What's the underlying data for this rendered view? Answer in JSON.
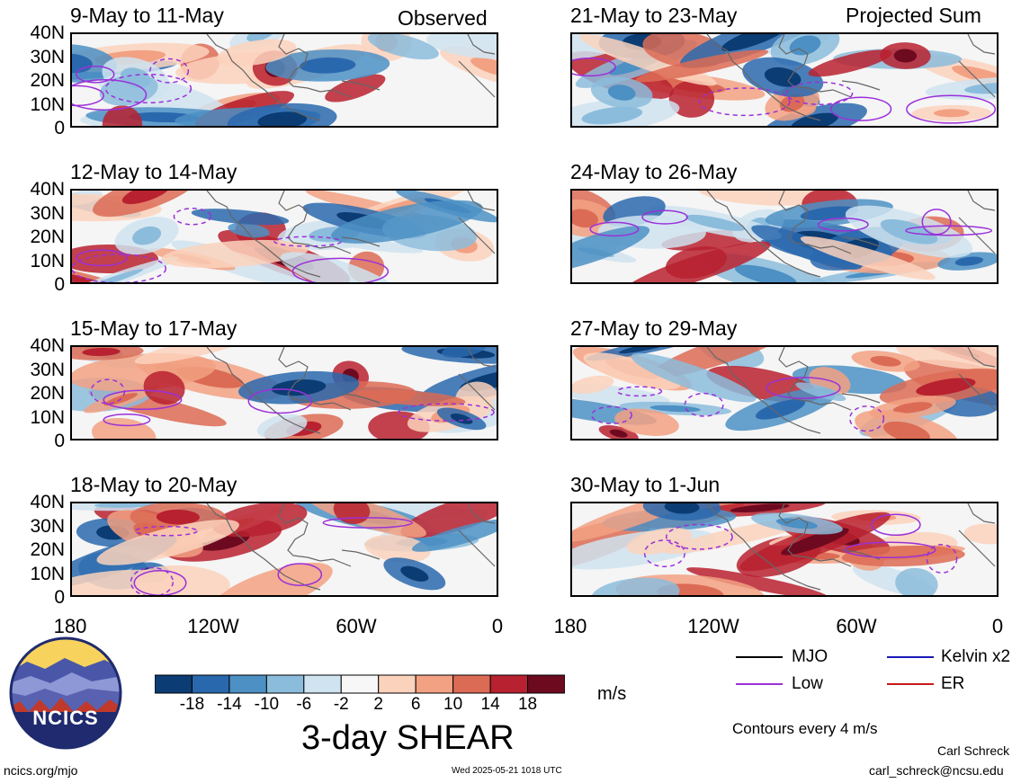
{
  "panels": [
    {
      "title": "9-May to 11-May",
      "tag": "Observed"
    },
    {
      "title": "21-May to 23-May",
      "tag": "Projected Sum"
    },
    {
      "title": "12-May to 14-May",
      "tag": ""
    },
    {
      "title": "24-May to 26-May",
      "tag": ""
    },
    {
      "title": "15-May to 17-May",
      "tag": ""
    },
    {
      "title": "27-May to 29-May",
      "tag": ""
    },
    {
      "title": "18-May to 20-May",
      "tag": ""
    },
    {
      "title": "30-May to 1-Jun",
      "tag": ""
    }
  ],
  "chart_data": {
    "type": "heatmap",
    "field": "3-day SHEAR",
    "units": "m/s",
    "ylabels": [
      "40N",
      "30N",
      "20N",
      "10N",
      "0"
    ],
    "xlabels": [
      "180",
      "120W",
      "60W",
      "0"
    ],
    "colorbar": {
      "ticks": [
        "-18",
        "-14",
        "-10",
        "-6",
        "-2",
        "2",
        "6",
        "10",
        "14",
        "18"
      ],
      "levels": [
        -18,
        -14,
        -10,
        -6,
        -2,
        2,
        6,
        10,
        14,
        18
      ],
      "colors": [
        "#0b3c73",
        "#2a68ae",
        "#4c90c4",
        "#8cbcdc",
        "#cfe3f0",
        "#f7f7f7",
        "#fbd2bc",
        "#f2a183",
        "#dc6b55",
        "#b8212f",
        "#6d0a20"
      ]
    },
    "legend": [
      {
        "label": "MJO",
        "color": "#000000"
      },
      {
        "label": "Kelvin x2",
        "color": "#1a1ab5"
      },
      {
        "label": "Low",
        "color": "#9b30d9"
      },
      {
        "label": "ER",
        "color": "#cc1a1a"
      }
    ],
    "contour_note": "Contours every 4 m/s"
  },
  "footer": {
    "title": "3-day SHEAR",
    "units": "m/s",
    "site": "ncics.org/mjo",
    "timestamp": "Wed 2025-05-21 1018 UTC",
    "author": "Carl Schreck",
    "email": "carl_schreck@ncsu.edu",
    "logo_text": "NCICS"
  }
}
